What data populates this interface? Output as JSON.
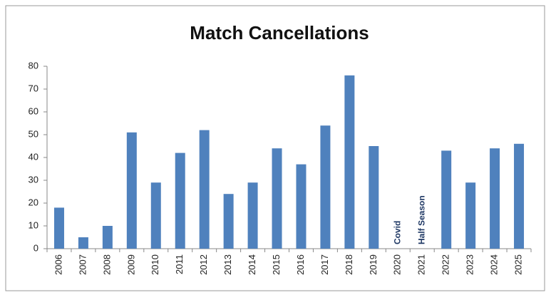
{
  "chart_data": {
    "type": "bar",
    "title": "Match Cancellations",
    "categories": [
      "2006",
      "2007",
      "2008",
      "2009",
      "2010",
      "2011",
      "2012",
      "2013",
      "2014",
      "2015",
      "2016",
      "2017",
      "2018",
      "2019",
      "2020",
      "2021",
      "2022",
      "2023",
      "2024",
      "2025"
    ],
    "values": [
      18,
      5,
      10,
      51,
      29,
      42,
      52,
      24,
      29,
      44,
      37,
      54,
      76,
      45,
      null,
      null,
      43,
      29,
      44,
      46
    ],
    "color": "#4f81bd",
    "ylim": [
      0,
      80
    ],
    "yticks": [
      0,
      10,
      20,
      30,
      40,
      50,
      60,
      70,
      80
    ],
    "grid": false,
    "annotations": [
      {
        "text": "Covid",
        "x": "2020"
      },
      {
        "text": "Half Season",
        "x": "2021"
      }
    ]
  }
}
